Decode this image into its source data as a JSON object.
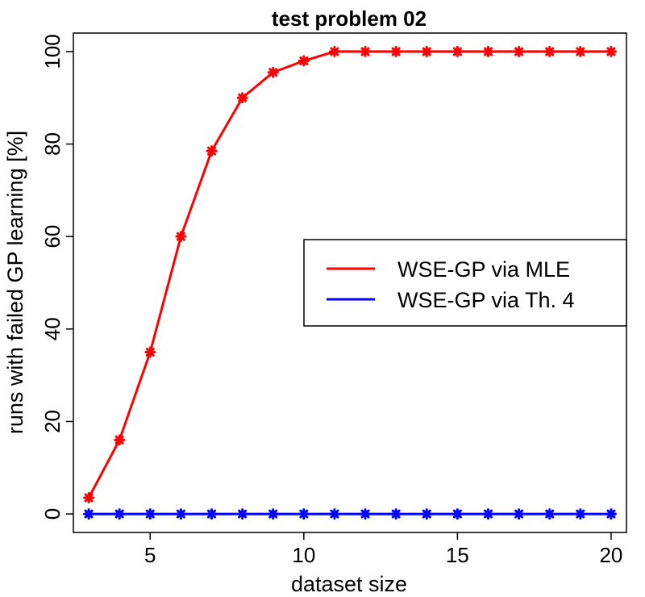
{
  "chart_data": {
    "type": "line",
    "title": "test problem 02",
    "xlabel": "dataset size",
    "ylabel": "runs with failed GP learning [%]",
    "xlim": [
      2.5,
      20.5
    ],
    "ylim": [
      -4,
      104
    ],
    "x_ticks": [
      5,
      10,
      15,
      20
    ],
    "y_ticks": [
      0,
      20,
      40,
      60,
      80,
      100
    ],
    "grid": false,
    "legend_position": "right-center",
    "x": [
      3,
      4,
      5,
      6,
      7,
      8,
      9,
      10,
      11,
      12,
      13,
      14,
      15,
      16,
      17,
      18,
      19,
      20
    ],
    "series": [
      {
        "name": "WSE-GP via MLE",
        "color": "#ff0000",
        "values": [
          3.5,
          16,
          35,
          60,
          78.5,
          90,
          95.5,
          98,
          100,
          100,
          100,
          100,
          100,
          100,
          100,
          100,
          100,
          100
        ]
      },
      {
        "name": "WSE-GP via Th. 4",
        "color": "#0000ff",
        "values": [
          0,
          0,
          0,
          0,
          0,
          0,
          0,
          0,
          0,
          0,
          0,
          0,
          0,
          0,
          0,
          0,
          0,
          0
        ]
      }
    ]
  }
}
